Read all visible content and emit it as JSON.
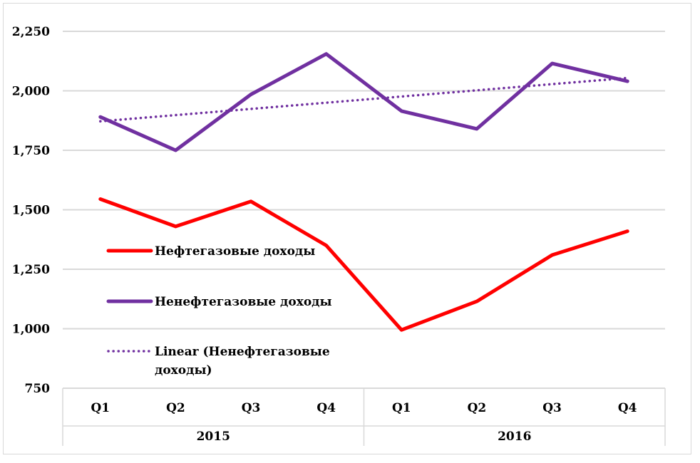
{
  "chart_data": {
    "type": "line",
    "title": "",
    "xlabel": "",
    "ylabel": "",
    "ylim": [
      750,
      2250
    ],
    "yticks": [
      750,
      1000,
      1250,
      1500,
      1750,
      2000,
      2250
    ],
    "ytick_labels": [
      "750",
      "1,000",
      "1,250",
      "1,500",
      "1,750",
      "2,000",
      "2,250"
    ],
    "grid": true,
    "categories": [
      "Q1",
      "Q2",
      "Q3",
      "Q4",
      "Q1",
      "Q2",
      "Q3",
      "Q4"
    ],
    "category_groups": [
      {
        "label": "2015",
        "count": 4
      },
      {
        "label": "2016",
        "count": 4
      }
    ],
    "legend_position": "left-inside",
    "series": [
      {
        "name": "Нефтегазовые доходы",
        "color": "#ff0000",
        "style": "solid",
        "values": [
          1545,
          1430,
          1535,
          1350,
          995,
          1115,
          1310,
          1410
        ]
      },
      {
        "name": "Ненефтегазовые доходы",
        "color": "#7030a0",
        "style": "solid",
        "values": [
          1890,
          1750,
          1985,
          2155,
          1915,
          1840,
          2115,
          2040
        ]
      },
      {
        "name": "Linear  (Ненефтегазовые доходы)",
        "name_lines": [
          "Linear  (Ненефтегазовые",
          "доходы)"
        ],
        "color": "#7030a0",
        "style": "dotted",
        "values": [
          1872,
          1898,
          1924,
          1950,
          1976,
          2002,
          2028,
          2054
        ]
      }
    ]
  }
}
